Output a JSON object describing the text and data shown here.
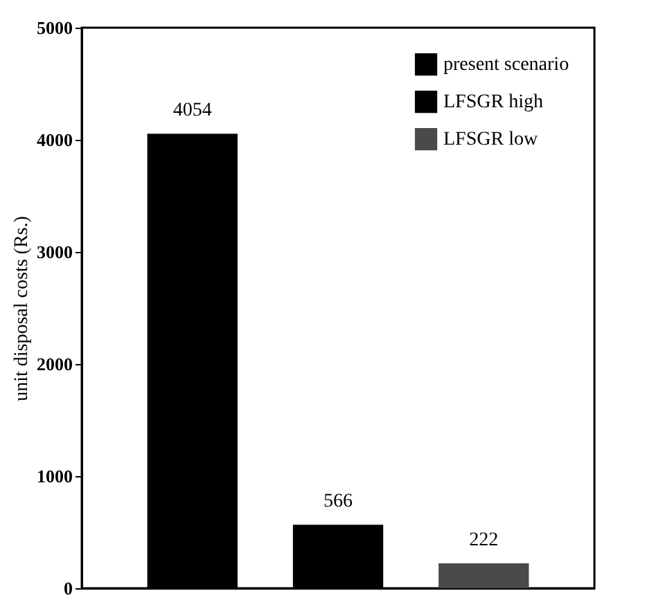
{
  "chart_data": {
    "type": "bar",
    "ylabel": "unit disposal costs (Rs.)",
    "categories": [
      null,
      null,
      null
    ],
    "series": [
      {
        "name": "present scenario",
        "color": "#000000",
        "values": [
          4054,
          null,
          null
        ]
      },
      {
        "name": "LFSGR high",
        "color": "#000000",
        "values": [
          null,
          566,
          null
        ]
      },
      {
        "name": "LFSGR low",
        "color": "#4a4a4a",
        "values": [
          null,
          null,
          222
        ]
      }
    ],
    "ylim": [
      0,
      5000
    ],
    "yticks": [
      0,
      1000,
      2000,
      3000,
      4000,
      5000
    ],
    "data_labels": true,
    "legend": "top right",
    "grid": false
  }
}
